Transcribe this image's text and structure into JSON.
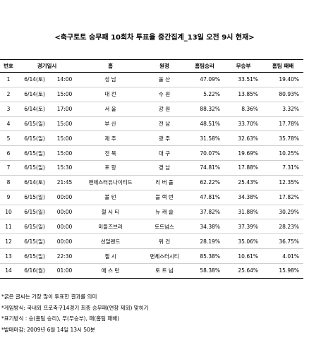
{
  "title": "<축구토토 승무패 10회차 투표율 중간집계_13일 오전 9시 현재>",
  "columns": [
    "번호",
    "경기일시",
    "홈",
    "원정",
    "홈팀승리",
    "무승부",
    "홈팀 패배"
  ],
  "rows": [
    {
      "no": "1",
      "date": "6/14(토)",
      "time": "14:00",
      "home": "성 남",
      "away": "울 산",
      "win": "47.09%",
      "draw": "33.51%",
      "loss": "19.40%"
    },
    {
      "no": "2",
      "date": "6/14(토)",
      "time": "15:00",
      "home": "대 전",
      "away": "수 원",
      "win": "5.22%",
      "draw": "13.85%",
      "loss": "80.93%"
    },
    {
      "no": "3",
      "date": "6/14(토)",
      "time": "17:00",
      "home": "서 울",
      "away": "강 원",
      "win": "88.32%",
      "draw": "8.36%",
      "loss": "3.32%"
    },
    {
      "no": "4",
      "date": "6/15(일)",
      "time": "15:00",
      "home": "부 산",
      "away": "전 남",
      "win": "48.51%",
      "draw": "33.70%",
      "loss": "17.78%"
    },
    {
      "no": "5",
      "date": "6/15(일)",
      "time": "15:00",
      "home": "제 주",
      "away": "광 주",
      "win": "31.58%",
      "draw": "32.63%",
      "loss": "35.78%"
    },
    {
      "no": "6",
      "date": "6/15(일)",
      "time": "15:00",
      "home": "전 북",
      "away": "대 구",
      "win": "70.07%",
      "draw": "19.69%",
      "loss": "10.25%"
    },
    {
      "no": "7",
      "date": "6/15(일)",
      "time": "15:30",
      "home": "포 항",
      "away": "경 남",
      "win": "74.81%",
      "draw": "17.88%",
      "loss": "7.31%"
    },
    {
      "no": "8",
      "date": "6/14(토)",
      "time": "21:45",
      "home": "맨체스터유나이티드",
      "away": "리 버 풀",
      "win": "62.22%",
      "draw": "25.43%",
      "loss": "12.35%"
    },
    {
      "no": "9",
      "date": "6/15(일)",
      "time": "00:00",
      "home": "볼 턴",
      "away": "블 랙 번",
      "win": "47.81%",
      "draw": "34.38%",
      "loss": "17.82%"
    },
    {
      "no": "10",
      "date": "6/15(일)",
      "time": "00:00",
      "home": "헐 시 티",
      "away": "뉴 캐 슬",
      "win": "37.82%",
      "draw": "31.88%",
      "loss": "30.29%"
    },
    {
      "no": "11",
      "date": "6/15(일)",
      "time": "00:00",
      "home": "미들즈브러",
      "away": "토트넘스",
      "win": "34.38%",
      "draw": "37.39%",
      "loss": "28.23%"
    },
    {
      "no": "12",
      "date": "6/15(일)",
      "time": "00:00",
      "home": "선덜랜드",
      "away": "위 건",
      "win": "28.19%",
      "draw": "35.06%",
      "loss": "36.75%"
    },
    {
      "no": "13",
      "date": "6/15(일)",
      "time": "22:30",
      "home": "첼 시",
      "away": "맨체스터시티",
      "win": "85.38%",
      "draw": "10.61%",
      "loss": "4.01%"
    },
    {
      "no": "14",
      "date": "6/16(월)",
      "time": "01:00",
      "home": "에 스 턴",
      "away": "토 트 넘",
      "win": "58.38%",
      "draw": "25.64%",
      "loss": "15.98%"
    }
  ],
  "notes": [
    "*굵은 글씨는 가장 많이 투표한 결과를 의미",
    "*게임방식: 국내외 프로축구14경기 최종 승무패(연장 제외) 맞히기",
    "*표기방식 : 승(홈팀 승리), 무(무승부), 패(홈팀 패배)",
    "*발매마감: 2009년 6월 14일 13시 50분"
  ]
}
